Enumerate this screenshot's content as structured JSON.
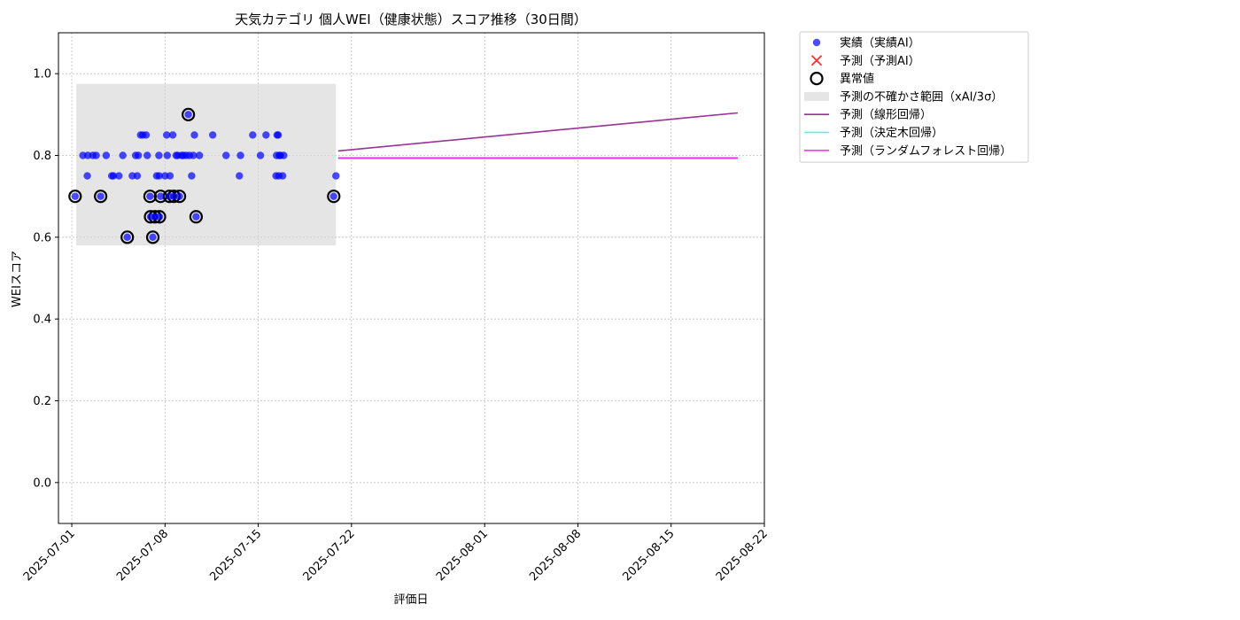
{
  "chart_data": {
    "type": "scatter",
    "title": "天気カテゴリ 個人WEI（健康状態）スコア推移（30日間）",
    "xlabel": "評価日",
    "ylabel": "WEIスコア",
    "xlim": [
      "2025-06-30T00:00",
      "2025-08-22T00:00"
    ],
    "ylim": [
      -0.1,
      1.1
    ],
    "grid": true,
    "legend_position": "outside-right-top",
    "x_ticks": [
      "2025-07-01",
      "2025-07-08",
      "2025-07-15",
      "2025-07-22",
      "2025-08-01",
      "2025-08-08",
      "2025-08-15",
      "2025-08-22"
    ],
    "y_ticks": [
      "0.0",
      "0.2",
      "0.4",
      "0.6",
      "0.8",
      "1.0"
    ],
    "colors": {
      "actual": "#0000ff",
      "predicted_ai": "#ff0000",
      "outlier_edge": "#000000",
      "uncertainty_band": "#d3d3d3",
      "linear": "#800080",
      "decision_tree": "#00ffff",
      "random_forest": "#ff00ff"
    },
    "legend": [
      {
        "label": "実績（実績AI）",
        "marker": "dot",
        "color": "#0000ff"
      },
      {
        "label": "予測（予測AI）",
        "marker": "x",
        "color": "#ff0000"
      },
      {
        "label": "異常値",
        "marker": "ring",
        "color": "#000000"
      },
      {
        "label": "予測の不確かさ範囲（xAI/3σ）",
        "marker": "patch",
        "color": "#d3d3d3"
      },
      {
        "label": "予測（線形回帰）",
        "marker": "line",
        "color": "#800080"
      },
      {
        "label": "予測（決定木回帰）",
        "marker": "line",
        "color": "#00ffff"
      },
      {
        "label": "予測（ランダムフォレスト回帰）",
        "marker": "line",
        "color": "#ff00ff"
      }
    ],
    "uncertainty_band": {
      "x": [
        "2025-07-01T08:00",
        "2025-07-20T20:00"
      ],
      "y": [
        0.58,
        0.975
      ]
    },
    "series": [
      {
        "name": "実績（実績AI）",
        "type": "scatter",
        "points": [
          [
            "2025-07-01T06:00",
            0.7
          ],
          [
            "2025-07-01T20:00",
            0.8
          ],
          [
            "2025-07-02T04:00",
            0.75
          ],
          [
            "2025-07-02T05:00",
            0.8
          ],
          [
            "2025-07-02T14:00",
            0.8
          ],
          [
            "2025-07-02T20:00",
            0.8
          ],
          [
            "2025-07-03T04:00",
            0.7
          ],
          [
            "2025-07-03T14:00",
            0.8
          ],
          [
            "2025-07-04T00:00",
            0.75
          ],
          [
            "2025-07-04T03:00",
            0.75
          ],
          [
            "2025-07-04T13:00",
            0.75
          ],
          [
            "2025-07-04T20:00",
            0.8
          ],
          [
            "2025-07-05T04:00",
            0.6
          ],
          [
            "2025-07-05T13:00",
            0.75
          ],
          [
            "2025-07-05T19:00",
            0.8
          ],
          [
            "2025-07-05T22:00",
            0.75
          ],
          [
            "2025-07-06T00:00",
            0.8
          ],
          [
            "2025-07-06T04:00",
            0.85
          ],
          [
            "2025-07-06T08:00",
            0.85
          ],
          [
            "2025-07-06T14:00",
            0.85
          ],
          [
            "2025-07-06T16:00",
            0.8
          ],
          [
            "2025-07-06T21:00",
            0.7
          ],
          [
            "2025-07-06T22:00",
            0.65
          ],
          [
            "2025-07-07T02:00",
            0.6
          ],
          [
            "2025-07-07T06:00",
            0.65
          ],
          [
            "2025-07-07T09:00",
            0.75
          ],
          [
            "2025-07-07T13:00",
            0.8
          ],
          [
            "2025-07-07T13:30",
            0.75
          ],
          [
            "2025-07-07T14:00",
            0.65
          ],
          [
            "2025-07-07T16:00",
            0.7
          ],
          [
            "2025-07-08T00:00",
            0.75
          ],
          [
            "2025-07-08T03:00",
            0.85
          ],
          [
            "2025-07-08T04:00",
            0.8
          ],
          [
            "2025-07-08T08:00",
            0.7
          ],
          [
            "2025-07-08T09:00",
            0.75
          ],
          [
            "2025-07-08T14:00",
            0.85
          ],
          [
            "2025-07-08T16:00",
            0.7
          ],
          [
            "2025-07-08T20:00",
            0.8
          ],
          [
            "2025-07-08T23:00",
            0.8
          ],
          [
            "2025-07-09T02:00",
            0.7
          ],
          [
            "2025-07-09T06:00",
            0.8
          ],
          [
            "2025-07-09T09:00",
            0.8
          ],
          [
            "2025-07-09T14:00",
            0.8
          ],
          [
            "2025-07-09T18:00",
            0.9
          ],
          [
            "2025-07-09T20:00",
            0.8
          ],
          [
            "2025-07-10T00:00",
            0.75
          ],
          [
            "2025-07-10T03:00",
            0.8
          ],
          [
            "2025-07-10T05:00",
            0.85
          ],
          [
            "2025-07-10T08:00",
            0.65
          ],
          [
            "2025-07-10T14:00",
            0.8
          ],
          [
            "2025-07-11T14:00",
            0.85
          ],
          [
            "2025-07-12T14:00",
            0.8
          ],
          [
            "2025-07-13T14:00",
            0.75
          ],
          [
            "2025-07-13T16:00",
            0.8
          ],
          [
            "2025-07-14T14:00",
            0.85
          ],
          [
            "2025-07-15T04:00",
            0.8
          ],
          [
            "2025-07-15T14:00",
            0.85
          ],
          [
            "2025-07-16T08:00",
            0.75
          ],
          [
            "2025-07-16T09:00",
            0.8
          ],
          [
            "2025-07-16T10:00",
            0.85
          ],
          [
            "2025-07-16T12:00",
            0.85
          ],
          [
            "2025-07-16T13:00",
            0.75
          ],
          [
            "2025-07-16T14:00",
            0.8
          ],
          [
            "2025-07-16T16:00",
            0.8
          ],
          [
            "2025-07-16T20:00",
            0.75
          ],
          [
            "2025-07-16T22:00",
            0.8
          ],
          [
            "2025-07-20T16:00",
            0.7
          ],
          [
            "2025-07-20T20:00",
            0.75
          ]
        ]
      },
      {
        "name": "異常値",
        "type": "outlier",
        "points": [
          [
            "2025-07-01T06:00",
            0.7
          ],
          [
            "2025-07-03T04:00",
            0.7
          ],
          [
            "2025-07-05T04:00",
            0.6
          ],
          [
            "2025-07-06T21:00",
            0.7
          ],
          [
            "2025-07-06T22:00",
            0.65
          ],
          [
            "2025-07-07T02:00",
            0.6
          ],
          [
            "2025-07-07T06:00",
            0.65
          ],
          [
            "2025-07-07T14:00",
            0.65
          ],
          [
            "2025-07-07T16:00",
            0.7
          ],
          [
            "2025-07-08T08:00",
            0.7
          ],
          [
            "2025-07-08T16:00",
            0.7
          ],
          [
            "2025-07-09T02:00",
            0.7
          ],
          [
            "2025-07-09T18:00",
            0.9
          ],
          [
            "2025-07-10T08:00",
            0.65
          ],
          [
            "2025-07-20T16:00",
            0.7
          ]
        ]
      },
      {
        "name": "予測（線形回帰）",
        "type": "line",
        "points": [
          [
            "2025-07-21T00:00",
            0.811
          ],
          [
            "2025-08-20T00:00",
            0.904
          ]
        ]
      },
      {
        "name": "予測（決定木回帰）",
        "type": "line",
        "points": [
          [
            "2025-07-21T00:00",
            0.795
          ],
          [
            "2025-08-20T00:00",
            0.795
          ]
        ]
      },
      {
        "name": "予測（ランダムフォレスト回帰）",
        "type": "line",
        "points": [
          [
            "2025-07-21T00:00",
            0.793
          ],
          [
            "2025-08-20T00:00",
            0.793
          ]
        ]
      }
    ]
  }
}
